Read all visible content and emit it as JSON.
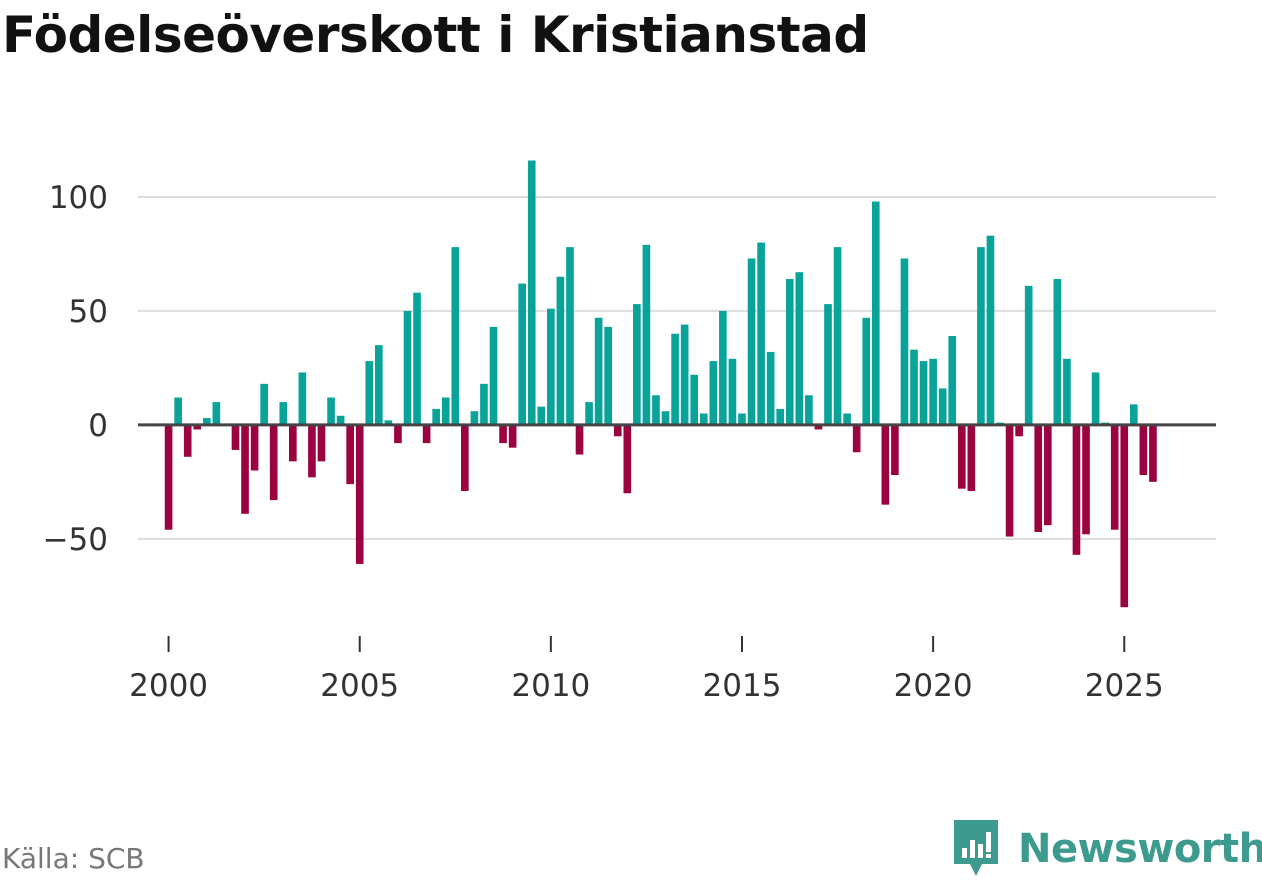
{
  "chart_data": {
    "type": "bar",
    "title": "Födelseöverskott i Kristianstad",
    "xlabel": "",
    "ylabel": "",
    "ylim": [
      -90,
      125
    ],
    "xlim": [
      1999.2,
      2027.4
    ],
    "y_ticks": [
      -50,
      0,
      50,
      100
    ],
    "y_tick_labels": [
      "−50",
      "0",
      "50",
      "100"
    ],
    "x_ticks": [
      2000,
      2005,
      2010,
      2015,
      2020,
      2025
    ],
    "x_tick_labels": [
      "2000",
      "2005",
      "2010",
      "2015",
      "2020",
      "2025"
    ],
    "grid": true,
    "positive_color": "#0aa39a",
    "negative_color": "#9b0340",
    "start_year": 2000,
    "start_quarter": 1,
    "periods_per_year": 4,
    "values": [
      -46,
      12,
      -14,
      -2,
      3,
      10,
      0,
      -11,
      -39,
      -20,
      18,
      -33,
      10,
      -16,
      23,
      -23,
      -16,
      12,
      4,
      -26,
      -61,
      28,
      35,
      2,
      -8,
      50,
      58,
      -8,
      7,
      12,
      78,
      -29,
      6,
      18,
      43,
      -8,
      -10,
      62,
      116,
      8,
      51,
      65,
      78,
      -13,
      10,
      47,
      43,
      -5,
      -30,
      53,
      79,
      13,
      6,
      40,
      44,
      22,
      5,
      28,
      50,
      29,
      5,
      73,
      80,
      32,
      7,
      64,
      67,
      13,
      -2,
      53,
      78,
      5,
      -12,
      47,
      98,
      -35,
      -22,
      73,
      33,
      28,
      29,
      16,
      39,
      -28,
      -29,
      78,
      83,
      1,
      -49,
      -5,
      61,
      -47,
      -44,
      64,
      29,
      -57,
      -48,
      23,
      1,
      -46,
      -80,
      9,
      -22,
      -25
    ]
  },
  "source_label": "Källa: SCB",
  "brand": {
    "name": "Newsworthy",
    "logo_icon": "newsworthy-logo-icon",
    "color": "#3d9a8e"
  }
}
